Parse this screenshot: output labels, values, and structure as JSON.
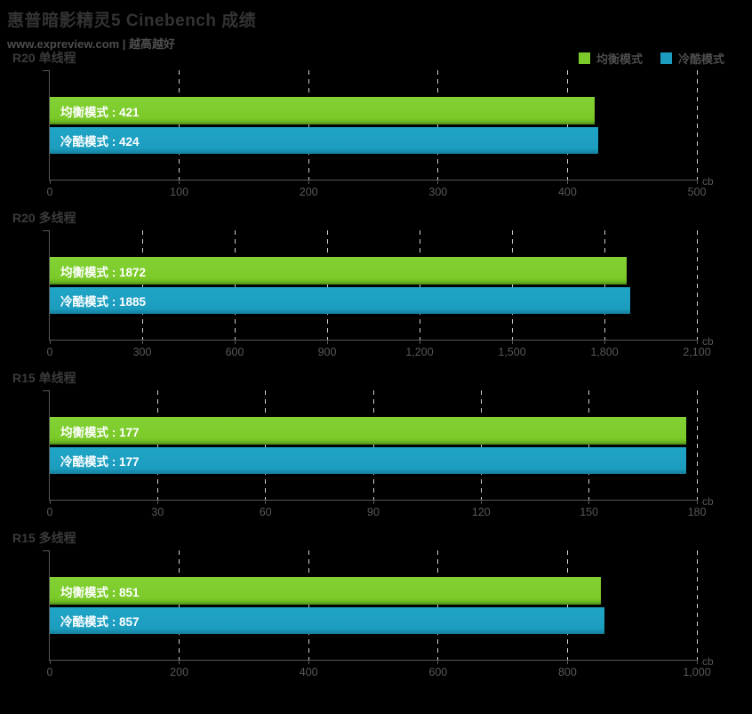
{
  "header": {
    "title": "惠普暗影精灵5 Cinebench 成绩",
    "subtitle": "www.expreview.com | 越高越好"
  },
  "legend": [
    {
      "label": "均衡模式",
      "color": "#7bca29"
    },
    {
      "label": "冷酷模式",
      "color": "#1c9dbf"
    }
  ],
  "colors": {
    "background": "#000000",
    "balanced_green": "#7bca29",
    "cool_cyan": "#1c9dbf",
    "axis_gray": "#585858",
    "gridline_gray": "#d0d0d0",
    "bar_text": "#ffffff",
    "title_text": "#333333"
  },
  "chart_data": [
    {
      "type": "bar",
      "orientation": "horizontal",
      "title": "R20 单线程",
      "unit": "cb",
      "xlim": [
        0,
        500
      ],
      "grid": true,
      "series": [
        {
          "name": "均衡模式",
          "value": 421
        },
        {
          "name": "冷酷模式",
          "value": 424
        }
      ],
      "ticks": [
        {
          "value": 0,
          "label": "0"
        },
        {
          "value": 100,
          "label": "100"
        },
        {
          "value": 200,
          "label": "200"
        },
        {
          "value": 300,
          "label": "300"
        },
        {
          "value": 400,
          "label": "400"
        },
        {
          "value": 500,
          "label": "500"
        }
      ]
    },
    {
      "type": "bar",
      "orientation": "horizontal",
      "title": "R20 多线程",
      "unit": "cb",
      "xlim": [
        0,
        2100
      ],
      "grid": true,
      "series": [
        {
          "name": "均衡模式",
          "value": 1872
        },
        {
          "name": "冷酷模式",
          "value": 1885
        }
      ],
      "ticks": [
        {
          "value": 0,
          "label": "0"
        },
        {
          "value": 300,
          "label": "300"
        },
        {
          "value": 600,
          "label": "600"
        },
        {
          "value": 900,
          "label": "900"
        },
        {
          "value": 1200,
          "label": "1,200"
        },
        {
          "value": 1500,
          "label": "1,500"
        },
        {
          "value": 1800,
          "label": "1,800"
        },
        {
          "value": 2100,
          "label": "2,100"
        }
      ]
    },
    {
      "type": "bar",
      "orientation": "horizontal",
      "title": "R15 单线程",
      "unit": "cb",
      "xlim": [
        0,
        180
      ],
      "grid": true,
      "series": [
        {
          "name": "均衡模式",
          "value": 177
        },
        {
          "name": "冷酷模式",
          "value": 177
        }
      ],
      "ticks": [
        {
          "value": 0,
          "label": "0"
        },
        {
          "value": 30,
          "label": "30"
        },
        {
          "value": 60,
          "label": "60"
        },
        {
          "value": 90,
          "label": "90"
        },
        {
          "value": 120,
          "label": "120"
        },
        {
          "value": 150,
          "label": "150"
        },
        {
          "value": 180,
          "label": "180"
        }
      ]
    },
    {
      "type": "bar",
      "orientation": "horizontal",
      "title": "R15 多线程",
      "unit": "cb",
      "xlim": [
        0,
        1000
      ],
      "grid": true,
      "series": [
        {
          "name": "均衡模式",
          "value": 851
        },
        {
          "name": "冷酷模式",
          "value": 857
        }
      ],
      "ticks": [
        {
          "value": 0,
          "label": "0"
        },
        {
          "value": 200,
          "label": "200"
        },
        {
          "value": 400,
          "label": "400"
        },
        {
          "value": 600,
          "label": "600"
        },
        {
          "value": 800,
          "label": "800"
        },
        {
          "value": 1000,
          "label": "1,000"
        }
      ]
    }
  ]
}
